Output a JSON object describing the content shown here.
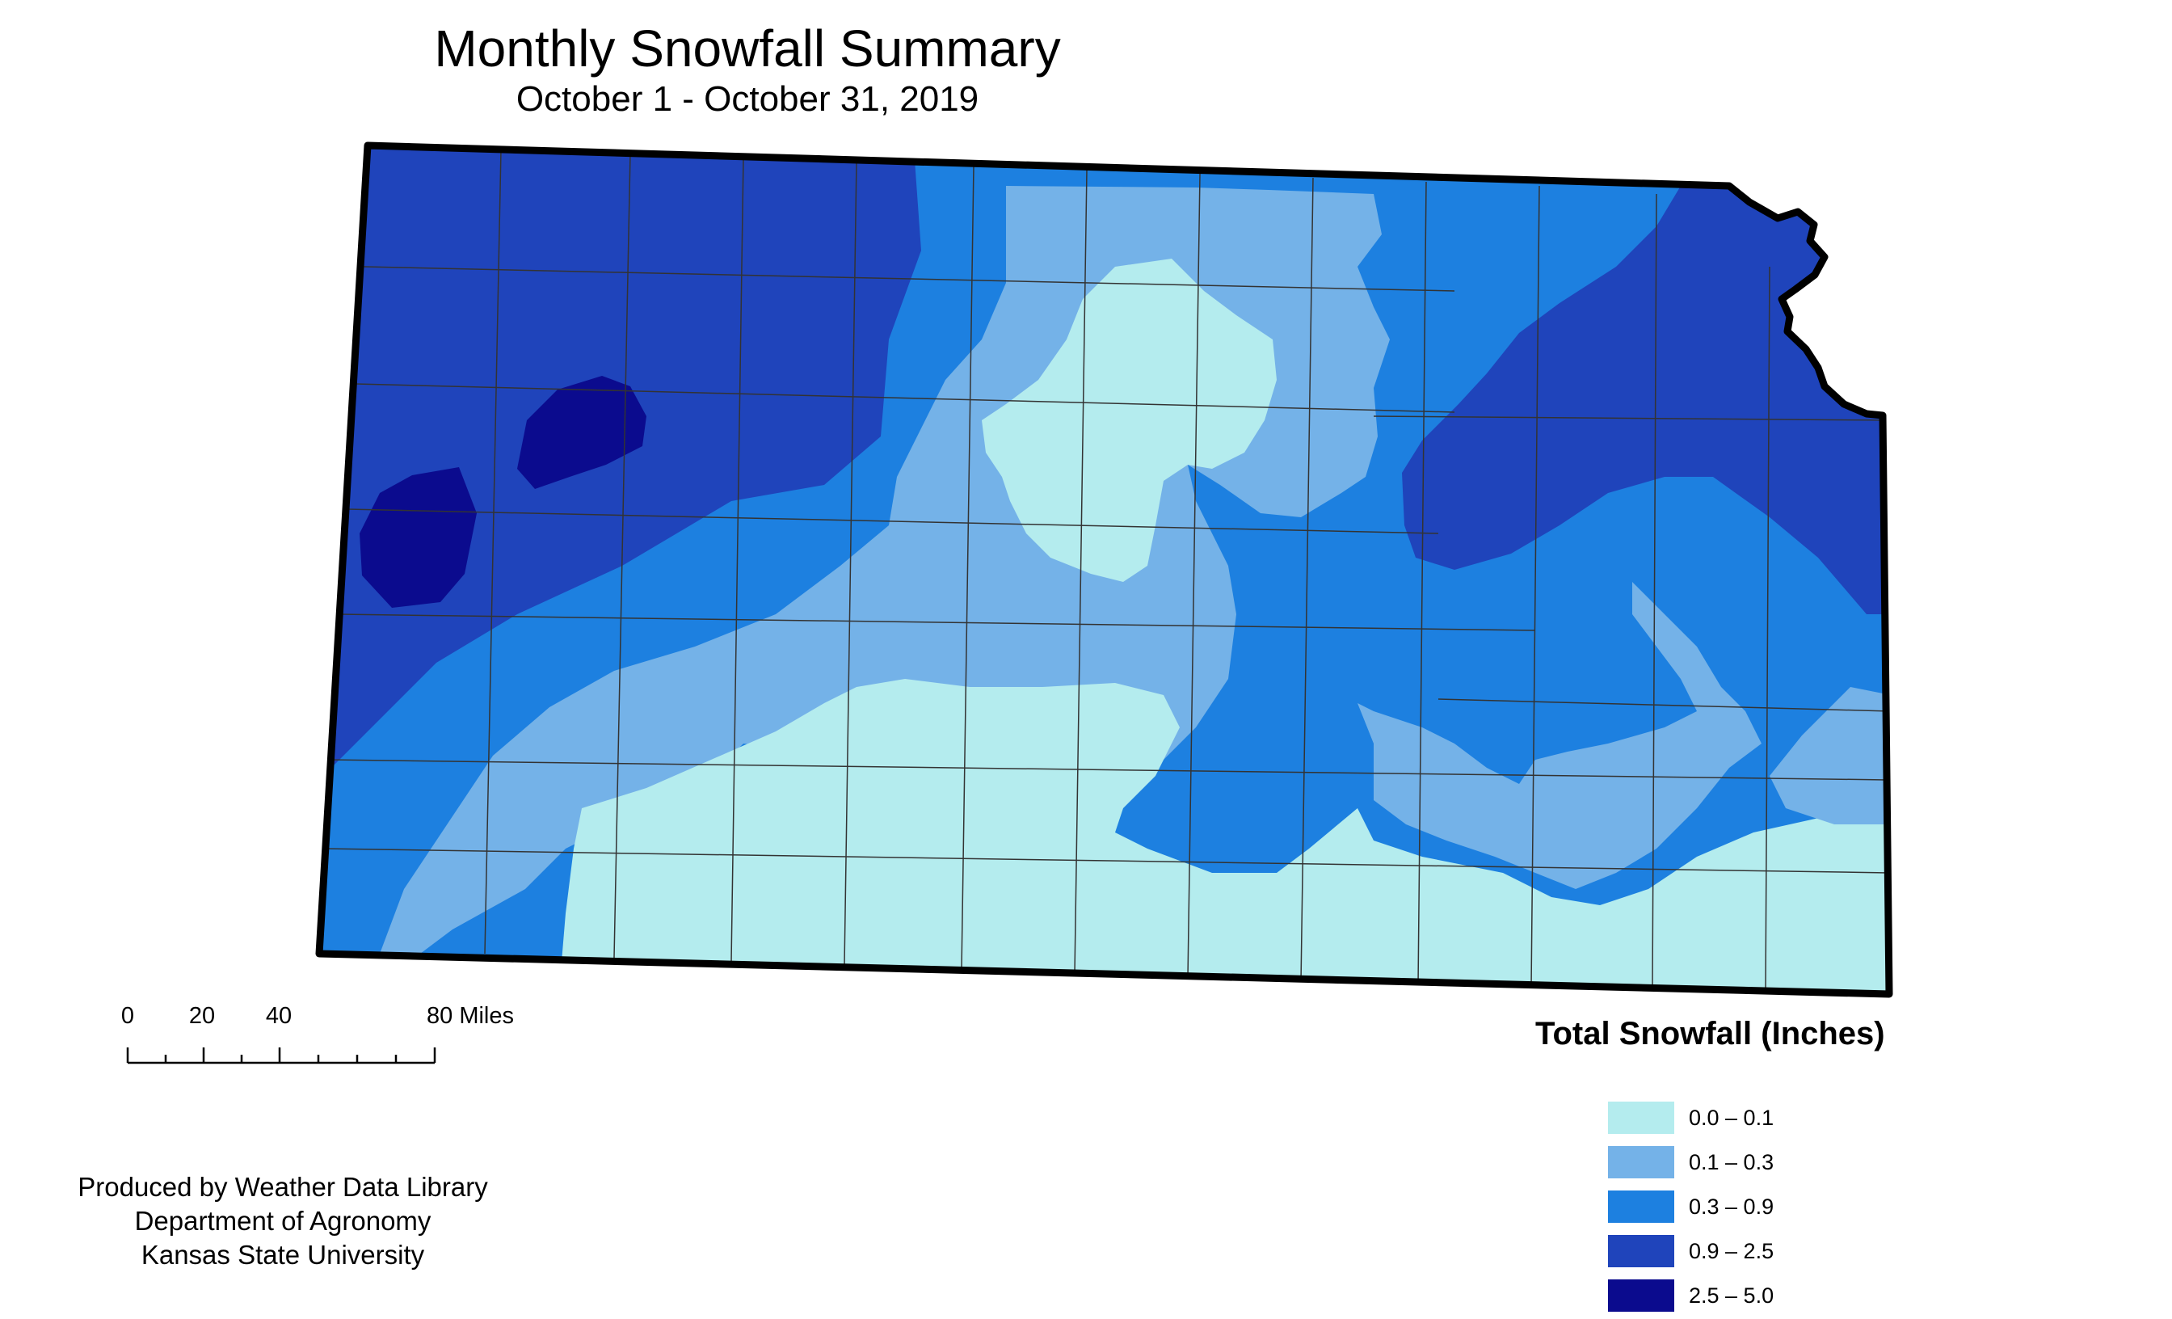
{
  "title": "Monthly Snowfall Summary",
  "subtitle": "October 1 - October 31, 2019",
  "legend": {
    "title": "Total Snowfall (Inches)",
    "classes": [
      {
        "label": "0.0 – 0.1",
        "color": "#b4ecee"
      },
      {
        "label": "0.1 – 0.3",
        "color": "#74b2e8"
      },
      {
        "label": "0.3 – 0.9",
        "color": "#1d80e0"
      },
      {
        "label": "0.9 – 2.5",
        "color": "#1f44bb"
      },
      {
        "label": "2.5 – 5.0",
        "color": "#0b0b8e"
      }
    ]
  },
  "scale_bar": {
    "ticks": [
      "0",
      "20",
      "40",
      "80 Miles"
    ]
  },
  "credits": {
    "line1": "Produced by Weather Data Library",
    "line2": "Department of Agronomy",
    "line3": "Kansas State University"
  },
  "colors": {
    "border": "#000000",
    "county_lines": "#333333",
    "background": "#ffffff"
  }
}
